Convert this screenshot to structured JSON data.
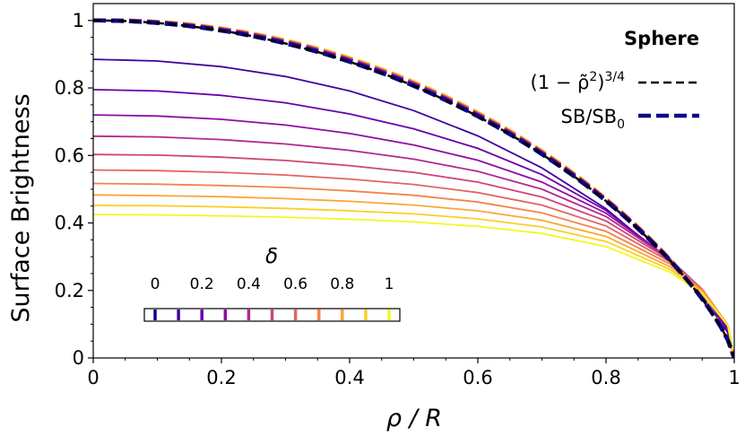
{
  "chart_data": {
    "type": "line",
    "title": "",
    "panel_label": "Sphere",
    "xlabel": "ρ / R",
    "ylabel": "Surface Brightness",
    "xlim": [
      0,
      1
    ],
    "ylim": [
      0,
      1.05
    ],
    "x_ticks": [
      0,
      0.2,
      0.4,
      0.6,
      0.8,
      1
    ],
    "x_tick_labels": [
      "0",
      "0.2",
      "0.4",
      "0.6",
      "0.8",
      "1"
    ],
    "y_ticks": [
      0,
      0.2,
      0.4,
      0.6,
      0.8,
      1
    ],
    "y_tick_labels": [
      "0",
      "0.2",
      "0.4",
      "0.6",
      "0.8",
      "1"
    ],
    "grid": false,
    "legend_position": "top-right",
    "legend": [
      {
        "label_html": "(1 − ρ̃²)<sup>3/4</sup>",
        "label_main": "(1 − ρ̃",
        "label_sup1": "2",
        "label_mid": ")",
        "label_sup2": "3/4",
        "color": "#000000",
        "style": "dashed"
      },
      {
        "label_main": "SB/SB",
        "label_sub": "0",
        "color": "#0d0887",
        "style": "dashed"
      }
    ],
    "colorbar": {
      "label": "δ",
      "ticks": [
        0,
        0.2,
        0.4,
        0.6,
        0.8,
        1
      ],
      "tick_labels": [
        "0",
        "0.2",
        "0.4",
        "0.6",
        "0.8",
        "1"
      ],
      "colors": [
        "#0d0887",
        "#41049d",
        "#6a00a8",
        "#8f0da4",
        "#b12a90",
        "#cc4778",
        "#e16462",
        "#f2844b",
        "#fca636",
        "#fcce25",
        "#f0f921"
      ]
    },
    "delta_values": [
      0,
      0.1,
      0.2,
      0.3,
      0.4,
      0.5,
      0.6,
      0.7,
      0.8,
      0.9,
      1.0
    ],
    "series_colors": [
      "#0d0887",
      "#41049d",
      "#6a00a8",
      "#8f0da4",
      "#b12a90",
      "#cc4778",
      "#e16462",
      "#f2844b",
      "#fca636",
      "#fcce25",
      "#f0f921"
    ],
    "thin_series_y_at_0": [
      1.0,
      0.885,
      0.795,
      0.72,
      0.657,
      0.603,
      0.557,
      0.517,
      0.483,
      0.452,
      0.425
    ],
    "thin_series_x": [
      0,
      0.1,
      0.2,
      0.3,
      0.4,
      0.5,
      0.6,
      0.7,
      0.8,
      0.9,
      0.95,
      0.99,
      1
    ],
    "thin_series_y": [
      [
        1.0,
        0.993,
        0.971,
        0.933,
        0.878,
        0.806,
        0.713,
        0.597,
        0.453,
        0.27,
        0.16,
        0.05,
        0.0
      ],
      [
        0.885,
        0.88,
        0.863,
        0.834,
        0.791,
        0.733,
        0.658,
        0.563,
        0.442,
        0.284,
        0.184,
        0.075,
        0.0
      ],
      [
        0.795,
        0.791,
        0.778,
        0.756,
        0.723,
        0.679,
        0.621,
        0.543,
        0.437,
        0.291,
        0.194,
        0.083,
        0.0
      ],
      [
        0.72,
        0.717,
        0.707,
        0.69,
        0.665,
        0.631,
        0.586,
        0.521,
        0.429,
        0.293,
        0.199,
        0.089,
        0.0
      ],
      [
        0.657,
        0.655,
        0.647,
        0.634,
        0.615,
        0.589,
        0.553,
        0.5,
        0.419,
        0.293,
        0.203,
        0.093,
        0.0
      ],
      [
        0.603,
        0.601,
        0.595,
        0.585,
        0.57,
        0.55,
        0.521,
        0.477,
        0.406,
        0.29,
        0.204,
        0.096,
        0.0
      ],
      [
        0.557,
        0.555,
        0.55,
        0.542,
        0.53,
        0.514,
        0.49,
        0.453,
        0.391,
        0.285,
        0.203,
        0.098,
        0.0
      ],
      [
        0.517,
        0.515,
        0.511,
        0.505,
        0.495,
        0.482,
        0.462,
        0.43,
        0.375,
        0.278,
        0.201,
        0.098,
        0.0
      ],
      [
        0.483,
        0.481,
        0.478,
        0.472,
        0.464,
        0.453,
        0.436,
        0.408,
        0.36,
        0.27,
        0.198,
        0.098,
        0.0
      ],
      [
        0.452,
        0.451,
        0.448,
        0.443,
        0.436,
        0.427,
        0.412,
        0.388,
        0.345,
        0.262,
        0.194,
        0.097,
        0.0
      ],
      [
        0.425,
        0.424,
        0.421,
        0.417,
        0.411,
        0.403,
        0.39,
        0.369,
        0.33,
        0.254,
        0.19,
        0.096,
        0.0
      ]
    ],
    "reference_curve_note_free": true,
    "reference_exponent": 0.75
  }
}
